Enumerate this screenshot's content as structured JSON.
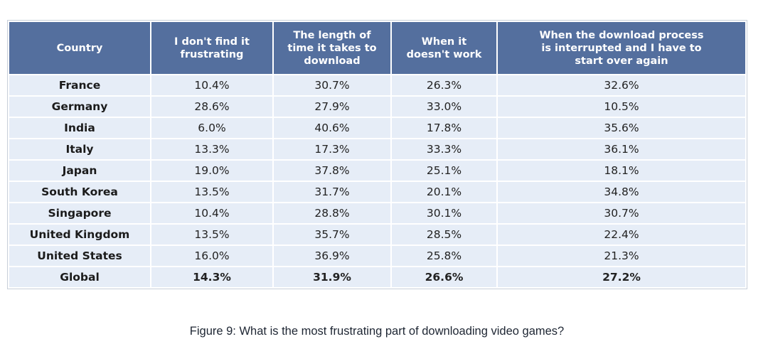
{
  "table": {
    "headers": [
      "Country",
      "I don't find it\nfrustrating",
      "The length of\ntime it takes to\ndownload",
      "When it\ndoesn't work",
      "When the download process\nis interrupted and I have to\nstart over again"
    ],
    "rows": [
      {
        "country": "France",
        "values": [
          "10.4%",
          "30.7%",
          "26.3%",
          "32.6%"
        ]
      },
      {
        "country": "Germany",
        "values": [
          "28.6%",
          "27.9%",
          "33.0%",
          "10.5%"
        ]
      },
      {
        "country": "India",
        "values": [
          "6.0%",
          "40.6%",
          "17.8%",
          "35.6%"
        ]
      },
      {
        "country": "Italy",
        "values": [
          "13.3%",
          "17.3%",
          "33.3%",
          "36.1%"
        ]
      },
      {
        "country": "Japan",
        "values": [
          "19.0%",
          "37.8%",
          "25.1%",
          "18.1%"
        ]
      },
      {
        "country": "South Korea",
        "values": [
          "13.5%",
          "31.7%",
          "20.1%",
          "34.8%"
        ]
      },
      {
        "country": "Singapore",
        "values": [
          "10.4%",
          "28.8%",
          "30.1%",
          "30.7%"
        ]
      },
      {
        "country": "United Kingdom",
        "values": [
          "13.5%",
          "35.7%",
          "28.5%",
          "22.4%"
        ]
      },
      {
        "country": "United States",
        "values": [
          "16.0%",
          "36.9%",
          "25.8%",
          "21.3%"
        ]
      },
      {
        "country": "Global",
        "values": [
          "14.3%",
          "31.9%",
          "26.6%",
          "27.2%"
        ]
      }
    ]
  },
  "caption": "Figure 9: What is the most frustrating part of downloading video games?",
  "colors": {
    "header_bg": "#546f9e",
    "cell_bg": "#e6edf7"
  }
}
